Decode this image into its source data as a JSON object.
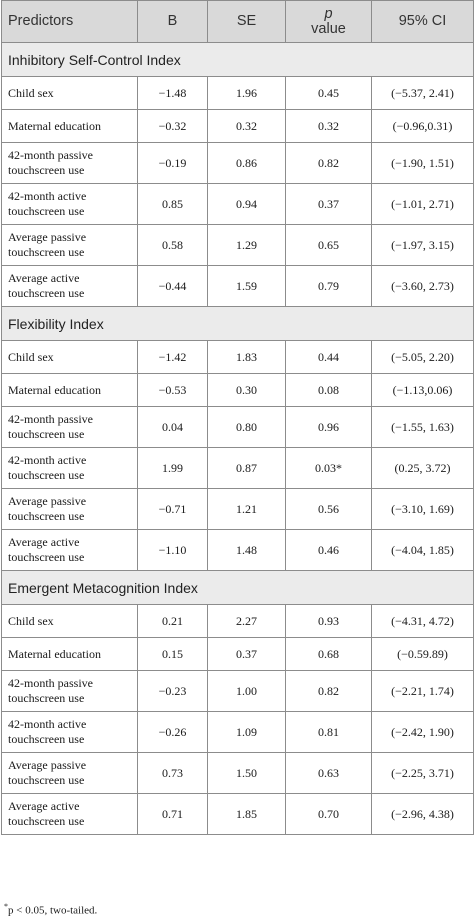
{
  "header": {
    "predictors": "Predictors",
    "b": "B",
    "se": "SE",
    "p_italic": "p",
    "p_rest": "value",
    "ci": "95% CI"
  },
  "sections": [
    {
      "title": "Inhibitory Self-Control Index",
      "rows": [
        {
          "predictor": "Child sex",
          "b": "−1.48",
          "se": "1.96",
          "p": "0.45",
          "ci": "(−5.37, 2.41)"
        },
        {
          "predictor": "Maternal education",
          "b": "−0.32",
          "se": "0.32",
          "p": "0.32",
          "ci": "(−0.96,0.31)"
        },
        {
          "predictor": "42-month passive touchscreen use",
          "b": "−0.19",
          "se": "0.86",
          "p": "0.82",
          "ci": "(−1.90, 1.51)"
        },
        {
          "predictor": "42-month active touchscreen use",
          "b": "0.85",
          "se": "0.94",
          "p": "0.37",
          "ci": "(−1.01, 2.71)"
        },
        {
          "predictor": "Average passive touchscreen use",
          "b": "0.58",
          "se": "1.29",
          "p": "0.65",
          "ci": "(−1.97, 3.15)"
        },
        {
          "predictor": "Average active touchscreen use",
          "b": "−0.44",
          "se": "1.59",
          "p": "0.79",
          "ci": "(−3.60, 2.73)"
        }
      ]
    },
    {
      "title": "Flexibility Index",
      "rows": [
        {
          "predictor": "Child sex",
          "b": "−1.42",
          "se": "1.83",
          "p": "0.44",
          "ci": "(−5.05, 2.20)"
        },
        {
          "predictor": "Maternal education",
          "b": "−0.53",
          "se": "0.30",
          "p": "0.08",
          "ci": "(−1.13,0.06)"
        },
        {
          "predictor": "42-month passive touchscreen use",
          "b": "0.04",
          "se": "0.80",
          "p": "0.96",
          "ci": "(−1.55, 1.63)"
        },
        {
          "predictor": "42-month active touchscreen use",
          "b": "1.99",
          "se": "0.87",
          "p": "0.03*",
          "ci": "(0.25, 3.72)"
        },
        {
          "predictor": "Average passive touchscreen use",
          "b": "−0.71",
          "se": "1.21",
          "p": "0.56",
          "ci": "(−3.10, 1.69)"
        },
        {
          "predictor": "Average active touchscreen use",
          "b": "−1.10",
          "se": "1.48",
          "p": "0.46",
          "ci": "(−4.04, 1.85)"
        }
      ]
    },
    {
      "title": "Emergent Metacognition Index",
      "rows": [
        {
          "predictor": "Child sex",
          "b": "0.21",
          "se": "2.27",
          "p": "0.93",
          "ci": "(−4.31, 4.72)"
        },
        {
          "predictor": "Maternal education",
          "b": "0.15",
          "se": "0.37",
          "p": "0.68",
          "ci": "(−0.59.89)"
        },
        {
          "predictor": "42-month passive touchscreen use",
          "b": "−0.23",
          "se": "1.00",
          "p": "0.82",
          "ci": "(−2.21, 1.74)"
        },
        {
          "predictor": "42-month active touchscreen use",
          "b": "−0.26",
          "se": "1.09",
          "p": "0.81",
          "ci": "(−2.42, 1.90)"
        },
        {
          "predictor": "Average passive touchscreen use",
          "b": "0.73",
          "se": "1.50",
          "p": "0.63",
          "ci": "(−2.25, 3.71)"
        },
        {
          "predictor": "Average active touchscreen use",
          "b": "0.71",
          "se": "1.85",
          "p": "0.70",
          "ci": "(−2.96, 4.38)"
        }
      ]
    }
  ],
  "footnote": {
    "marker": "*",
    "text": "p < 0.05, two-tailed."
  }
}
